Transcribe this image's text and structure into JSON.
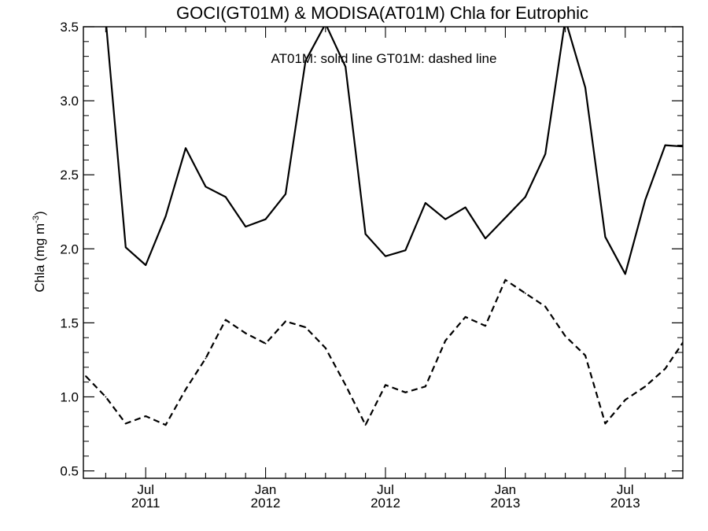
{
  "chart_data": {
    "type": "line",
    "title": "GOCI(GT01M) & MODISA(AT01M)  Chla for Eutrophic",
    "annotation": "AT01M: solid line   GT01M: dashed line",
    "ylabel_main": "Chla (mg m",
    "ylabel_sup": "-3",
    "ylabel_close": ")",
    "xlabel": "",
    "x_start": "2011-04",
    "ylim": [
      0.45,
      3.5
    ],
    "y_ticks": [
      {
        "value": 0.5,
        "label": "0.5"
      },
      {
        "value": 1.0,
        "label": "1.0"
      },
      {
        "value": 1.5,
        "label": "1.5"
      },
      {
        "value": 2.0,
        "label": "2.0"
      },
      {
        "value": 2.5,
        "label": "2.5"
      },
      {
        "value": 3.0,
        "label": "3.0"
      },
      {
        "value": 3.5,
        "label": "3.5"
      }
    ],
    "x_ticks": [
      {
        "month": "2011-07",
        "label1": "Jul",
        "label2": "2011"
      },
      {
        "month": "2012-01",
        "label1": "Jan",
        "label2": "2012"
      },
      {
        "month": "2012-07",
        "label1": "Jul",
        "label2": "2012"
      },
      {
        "month": "2013-01",
        "label1": "Jan",
        "label2": "2013"
      },
      {
        "month": "2013-07",
        "label1": "Jul",
        "label2": "2013"
      }
    ],
    "series": [
      {
        "style": "solid",
        "x": [
          "2011-05",
          "2011-06",
          "2011-07",
          "2011-08",
          "2011-09",
          "2011-10",
          "2011-11",
          "2011-12",
          "2012-01",
          "2012-02",
          "2012-03",
          "2012-04",
          "2012-05",
          "2012-06",
          "2012-07",
          "2012-08",
          "2012-09",
          "2012-10",
          "2012-11",
          "2012-12",
          "2013-01",
          "2013-02",
          "2013-03",
          "2013-04",
          "2013-05",
          "2013-06",
          "2013-07",
          "2013-08",
          "2013-09",
          "2013-10"
        ],
        "values": [
          3.55,
          2.01,
          1.89,
          2.22,
          2.68,
          2.42,
          2.35,
          2.15,
          2.2,
          2.37,
          3.27,
          3.52,
          3.23,
          2.1,
          1.95,
          1.99,
          2.31,
          2.2,
          2.28,
          2.07,
          2.21,
          2.35,
          2.64,
          3.55,
          3.09,
          2.08,
          1.83,
          2.33,
          2.7,
          2.69
        ]
      },
      {
        "style": "dashed",
        "x": [
          "2011-04",
          "2011-05",
          "2011-06",
          "2011-07",
          "2011-08",
          "2011-09",
          "2011-10",
          "2011-11",
          "2011-12",
          "2012-01",
          "2012-02",
          "2012-03",
          "2012-04",
          "2012-05",
          "2012-06",
          "2012-07",
          "2012-08",
          "2012-09",
          "2012-10",
          "2012-11",
          "2012-12",
          "2013-01",
          "2013-02",
          "2013-03",
          "2013-04",
          "2013-05",
          "2013-06",
          "2013-07",
          "2013-08",
          "2013-09",
          "2013-10"
        ],
        "values": [
          1.14,
          1.0,
          0.82,
          0.87,
          0.81,
          1.05,
          1.26,
          1.52,
          1.43,
          1.36,
          1.51,
          1.47,
          1.33,
          1.08,
          0.81,
          1.08,
          1.03,
          1.07,
          1.38,
          1.54,
          1.48,
          1.79,
          1.7,
          1.61,
          1.41,
          1.28,
          0.82,
          0.98,
          1.07,
          1.19,
          1.39
        ]
      }
    ]
  }
}
